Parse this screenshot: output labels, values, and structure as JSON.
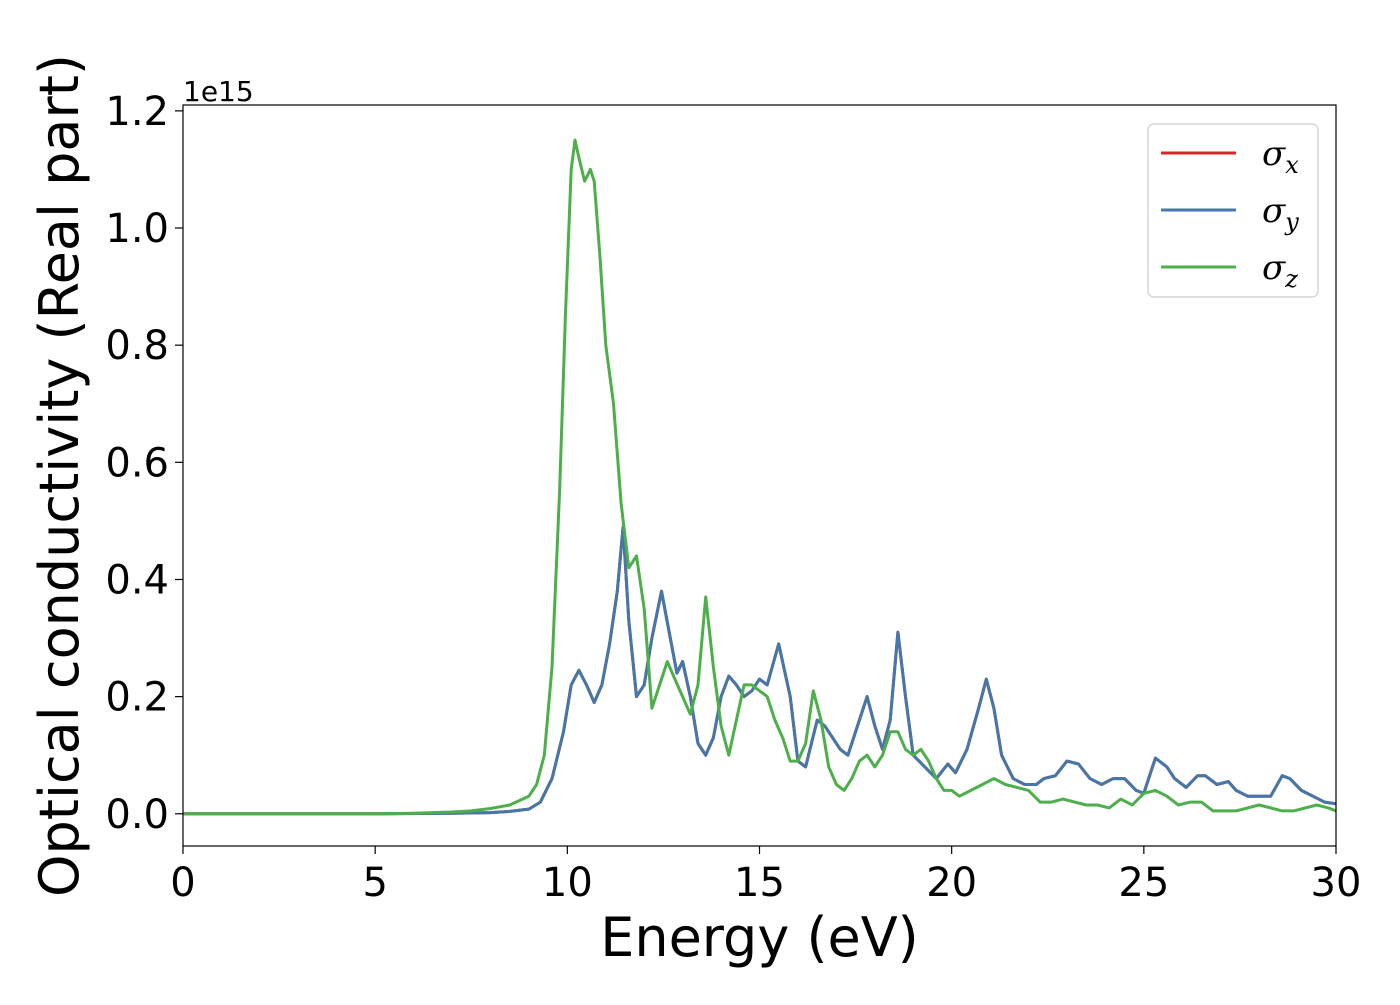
{
  "chart_data": {
    "type": "line",
    "title": "",
    "xlabel": "Energy (eV)",
    "ylabel": "Optical conductivity (Real part)",
    "y_offset_label": "1e15",
    "xlim": [
      0,
      30
    ],
    "ylim": [
      -0.055,
      1.21
    ],
    "xticks": [
      0,
      5,
      10,
      15,
      20,
      25,
      30
    ],
    "xtick_labels": [
      "0",
      "5",
      "10",
      "15",
      "20",
      "25",
      "30"
    ],
    "yticks": [
      0.0,
      0.2,
      0.4,
      0.6,
      0.8,
      1.0,
      1.2
    ],
    "ytick_labels": [
      "0.0",
      "0.2",
      "0.4",
      "0.6",
      "0.8",
      "1.0",
      "1.2"
    ],
    "grid": false,
    "legend_position": "top-right",
    "series": [
      {
        "name": "σ",
        "subscript": "x",
        "color": "#d62728",
        "x": [
          0,
          5,
          7,
          8,
          8.5,
          9,
          9.3,
          9.6,
          9.9,
          10.1,
          10.3,
          10.5,
          10.7,
          10.9,
          11.1,
          11.3,
          11.45,
          11.6,
          11.8,
          12.0,
          12.2,
          12.45,
          12.65,
          12.85,
          13.0,
          13.2,
          13.4,
          13.6,
          13.8,
          14.0,
          14.2,
          14.4,
          14.6,
          14.8,
          15.0,
          15.2,
          15.5,
          15.8,
          16.0,
          16.2,
          16.5,
          16.7,
          16.9,
          17.1,
          17.3,
          17.6,
          17.8,
          18.0,
          18.2,
          18.4,
          18.6,
          18.8,
          19.0,
          19.3,
          19.6,
          19.9,
          20.1,
          20.4,
          20.7,
          20.9,
          21.1,
          21.3,
          21.6,
          21.9,
          22.2,
          22.4,
          22.7,
          23.0,
          23.3,
          23.6,
          23.9,
          24.2,
          24.5,
          24.8,
          25.0,
          25.3,
          25.6,
          25.8,
          26.1,
          26.4,
          26.6,
          26.9,
          27.2,
          27.4,
          27.7,
          28.0,
          28.3,
          28.6,
          28.8,
          29.1,
          29.4,
          29.7,
          30
        ],
        "y": [
          0,
          0,
          0.001,
          0.002,
          0.004,
          0.008,
          0.02,
          0.06,
          0.14,
          0.22,
          0.245,
          0.22,
          0.19,
          0.22,
          0.29,
          0.38,
          0.49,
          0.33,
          0.2,
          0.22,
          0.3,
          0.38,
          0.31,
          0.24,
          0.26,
          0.2,
          0.12,
          0.1,
          0.13,
          0.2,
          0.235,
          0.22,
          0.2,
          0.21,
          0.23,
          0.22,
          0.29,
          0.2,
          0.09,
          0.08,
          0.16,
          0.15,
          0.13,
          0.11,
          0.1,
          0.16,
          0.2,
          0.15,
          0.11,
          0.16,
          0.31,
          0.2,
          0.1,
          0.08,
          0.06,
          0.085,
          0.07,
          0.11,
          0.18,
          0.23,
          0.18,
          0.1,
          0.06,
          0.05,
          0.05,
          0.06,
          0.065,
          0.09,
          0.085,
          0.06,
          0.05,
          0.06,
          0.06,
          0.04,
          0.035,
          0.095,
          0.08,
          0.06,
          0.045,
          0.065,
          0.065,
          0.05,
          0.055,
          0.04,
          0.03,
          0.03,
          0.03,
          0.065,
          0.06,
          0.04,
          0.03,
          0.02,
          0.017
        ]
      },
      {
        "name": "σ",
        "subscript": "y",
        "color": "#4477aa",
        "x": [
          0,
          5,
          7,
          8,
          8.5,
          9,
          9.3,
          9.6,
          9.9,
          10.1,
          10.3,
          10.5,
          10.7,
          10.9,
          11.1,
          11.3,
          11.45,
          11.6,
          11.8,
          12.0,
          12.2,
          12.45,
          12.65,
          12.85,
          13.0,
          13.2,
          13.4,
          13.6,
          13.8,
          14.0,
          14.2,
          14.4,
          14.6,
          14.8,
          15.0,
          15.2,
          15.5,
          15.8,
          16.0,
          16.2,
          16.5,
          16.7,
          16.9,
          17.1,
          17.3,
          17.6,
          17.8,
          18.0,
          18.2,
          18.4,
          18.6,
          18.8,
          19.0,
          19.3,
          19.6,
          19.9,
          20.1,
          20.4,
          20.7,
          20.9,
          21.1,
          21.3,
          21.6,
          21.9,
          22.2,
          22.4,
          22.7,
          23.0,
          23.3,
          23.6,
          23.9,
          24.2,
          24.5,
          24.8,
          25.0,
          25.3,
          25.6,
          25.8,
          26.1,
          26.4,
          26.6,
          26.9,
          27.2,
          27.4,
          27.7,
          28.0,
          28.3,
          28.6,
          28.8,
          29.1,
          29.4,
          29.7,
          30
        ],
        "y": [
          0,
          0,
          0.001,
          0.002,
          0.004,
          0.008,
          0.02,
          0.06,
          0.14,
          0.22,
          0.245,
          0.22,
          0.19,
          0.22,
          0.29,
          0.38,
          0.49,
          0.33,
          0.2,
          0.22,
          0.3,
          0.38,
          0.31,
          0.24,
          0.26,
          0.2,
          0.12,
          0.1,
          0.13,
          0.2,
          0.235,
          0.22,
          0.2,
          0.21,
          0.23,
          0.22,
          0.29,
          0.2,
          0.09,
          0.08,
          0.16,
          0.15,
          0.13,
          0.11,
          0.1,
          0.16,
          0.2,
          0.15,
          0.11,
          0.16,
          0.31,
          0.2,
          0.1,
          0.08,
          0.06,
          0.085,
          0.07,
          0.11,
          0.18,
          0.23,
          0.18,
          0.1,
          0.06,
          0.05,
          0.05,
          0.06,
          0.065,
          0.09,
          0.085,
          0.06,
          0.05,
          0.06,
          0.06,
          0.04,
          0.035,
          0.095,
          0.08,
          0.06,
          0.045,
          0.065,
          0.065,
          0.05,
          0.055,
          0.04,
          0.03,
          0.03,
          0.03,
          0.065,
          0.06,
          0.04,
          0.03,
          0.02,
          0.017
        ]
      },
      {
        "name": "σ",
        "subscript": "z",
        "color": "#4daf4a",
        "x": [
          0,
          5,
          6,
          7,
          7.5,
          8,
          8.5,
          9,
          9.2,
          9.4,
          9.6,
          9.8,
          9.95,
          10.1,
          10.2,
          10.3,
          10.45,
          10.6,
          10.7,
          10.85,
          11.0,
          11.2,
          11.4,
          11.6,
          11.8,
          12.0,
          12.2,
          12.4,
          12.6,
          12.8,
          13.0,
          13.2,
          13.4,
          13.6,
          13.8,
          14.0,
          14.2,
          14.4,
          14.6,
          14.8,
          15.0,
          15.2,
          15.4,
          15.6,
          15.8,
          16.0,
          16.2,
          16.4,
          16.6,
          16.8,
          17.0,
          17.2,
          17.4,
          17.6,
          17.8,
          18.0,
          18.2,
          18.4,
          18.6,
          18.8,
          19.0,
          19.2,
          19.4,
          19.6,
          19.8,
          20.0,
          20.2,
          20.5,
          20.8,
          21.1,
          21.4,
          21.7,
          22.0,
          22.3,
          22.6,
          22.9,
          23.2,
          23.5,
          23.8,
          24.1,
          24.4,
          24.7,
          25.0,
          25.3,
          25.6,
          25.9,
          26.2,
          26.5,
          26.8,
          27.1,
          27.4,
          27.7,
          28.0,
          28.3,
          28.6,
          28.9,
          29.2,
          29.5,
          29.8,
          30
        ],
        "y": [
          0,
          0,
          0.001,
          0.003,
          0.005,
          0.009,
          0.015,
          0.03,
          0.05,
          0.1,
          0.25,
          0.55,
          0.85,
          1.1,
          1.15,
          1.12,
          1.08,
          1.1,
          1.08,
          0.95,
          0.8,
          0.7,
          0.53,
          0.42,
          0.44,
          0.35,
          0.18,
          0.22,
          0.26,
          0.23,
          0.2,
          0.17,
          0.22,
          0.37,
          0.25,
          0.15,
          0.1,
          0.16,
          0.22,
          0.22,
          0.21,
          0.2,
          0.16,
          0.13,
          0.09,
          0.09,
          0.12,
          0.21,
          0.16,
          0.08,
          0.05,
          0.04,
          0.06,
          0.09,
          0.1,
          0.08,
          0.1,
          0.14,
          0.14,
          0.11,
          0.1,
          0.11,
          0.09,
          0.06,
          0.04,
          0.04,
          0.03,
          0.04,
          0.05,
          0.06,
          0.05,
          0.045,
          0.04,
          0.02,
          0.02,
          0.025,
          0.02,
          0.015,
          0.015,
          0.01,
          0.025,
          0.015,
          0.035,
          0.04,
          0.03,
          0.015,
          0.02,
          0.02,
          0.005,
          0.005,
          0.005,
          0.01,
          0.015,
          0.01,
          0.005,
          0.005,
          0.01,
          0.015,
          0.01,
          0.005
        ]
      }
    ]
  }
}
